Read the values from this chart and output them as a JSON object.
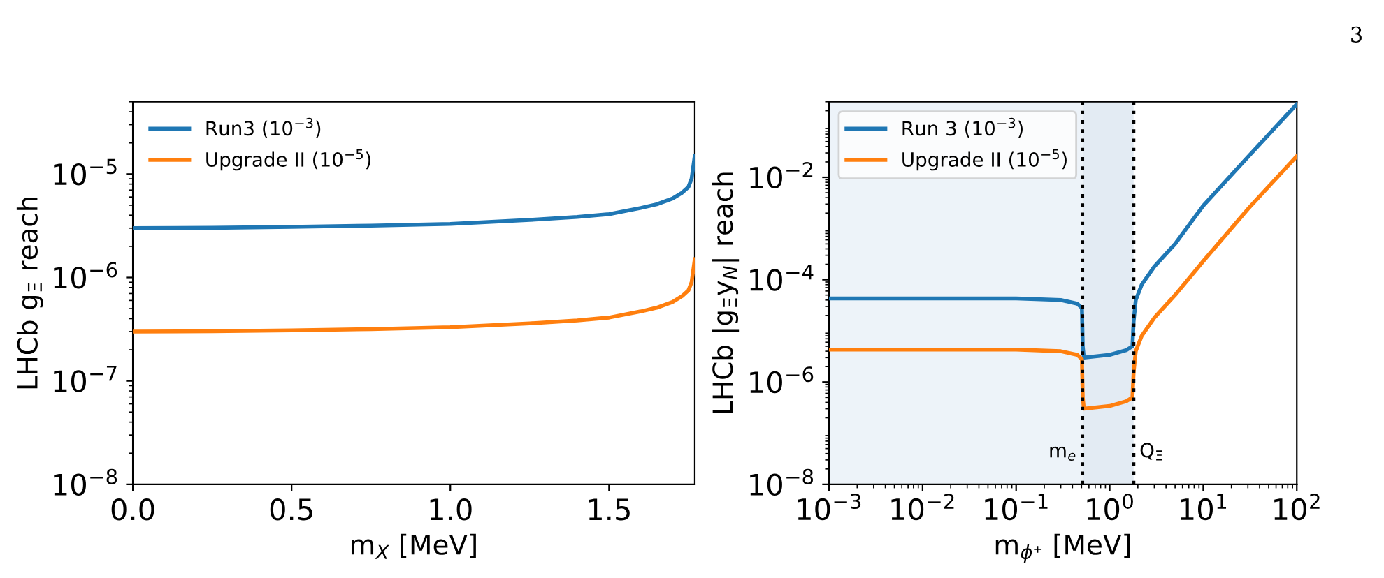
{
  "chart_data": [
    {
      "type": "line",
      "xlabel": "m$_{X}$ [MeV]",
      "ylabel": "LHCb g$_{Ξ}$ reach",
      "log": "y",
      "xlim": [
        0,
        1.77
      ],
      "ylim": [
        1e-08,
        5e-05
      ],
      "xticks": [
        {
          "value": 0,
          "label": "0.0"
        },
        0.5,
        {
          "value": 1,
          "label": "1.0"
        },
        1.5
      ],
      "yticks": [
        {
          "value": 1e-08,
          "label": "10$^{−8}$"
        },
        {
          "value": 1e-07,
          "label": "10$^{−7}$"
        },
        {
          "value": 1e-06,
          "label": "10$^{−6}$"
        },
        {
          "value": 1e-05,
          "label": "10$^{−5}$"
        }
      ],
      "x": [
        0,
        0.25,
        0.5,
        0.75,
        1.0,
        1.25,
        1.4,
        1.5,
        1.6,
        1.65,
        1.7,
        1.73,
        1.75,
        1.76,
        1.77
      ],
      "series": [
        {
          "name": "Run3 (10$^{−3}$)",
          "color": "#1f77b4",
          "values": [
            3e-06,
            3.02e-06,
            3.08e-06,
            3.17e-06,
            3.3e-06,
            3.6e-06,
            3.85e-06,
            4.1e-06,
            4.7e-06,
            5.1e-06,
            5.8e-06,
            6.6e-06,
            7.5e-06,
            9e-06,
            1.5e-05
          ]
        },
        {
          "name": "Upgrade II (10$^{−5}$)",
          "color": "#ff7f0e",
          "values": [
            3e-07,
            3.02e-07,
            3.08e-07,
            3.17e-07,
            3.3e-07,
            3.6e-07,
            3.85e-07,
            4.1e-07,
            4.7e-07,
            5.1e-07,
            5.8e-07,
            6.6e-07,
            7.5e-07,
            9e-07,
            1.5e-06
          ]
        }
      ],
      "legend": "top left",
      "grid": false,
      "annotations": [
        "3"
      ]
    },
    {
      "type": "line",
      "xlabel": "m$_{ϕ⁺}$ [MeV]",
      "ylabel": "LHCb |g$_{Ξ}$y$_{N}$| reach",
      "log": "xy",
      "xlim": [
        0.001,
        100
      ],
      "ylim": [
        1e-08,
        0.3
      ],
      "xticks": [
        {
          "value": 0.001,
          "label": "10$^{−3}$"
        },
        {
          "value": 0.01,
          "label": "10$^{−2}$"
        },
        {
          "value": 0.1,
          "label": "10$^{−1}$"
        },
        {
          "value": 1,
          "label": "10$^{0}$"
        },
        {
          "value": 10,
          "label": "10$^{1}$"
        },
        {
          "value": 100,
          "label": "10$^{2}$"
        }
      ],
      "yticks": [
        {
          "value": 1e-08,
          "label": "10$^{−8}$"
        },
        {
          "value": 1e-06,
          "label": "10$^{−6}$"
        },
        {
          "value": 0.0001,
          "label": "10$^{−4}$"
        },
        {
          "value": 0.01,
          "label": "10$^{−2}$"
        }
      ],
      "x": [
        0.001,
        0.01,
        0.1,
        0.3,
        0.45,
        0.505,
        0.515,
        0.53,
        1.0,
        1.5,
        1.75,
        1.8,
        1.9,
        2.2,
        3,
        5,
        10,
        30,
        100
      ],
      "series": [
        {
          "name": "Run 3 (10$^{−3}$)",
          "color": "#1f77b4",
          "values": [
            4.3e-05,
            4.3e-05,
            4.3e-05,
            4e-05,
            3.4e-05,
            2.8e-05,
            5e-06,
            3e-06,
            3.4e-06,
            4.2e-06,
            5e-06,
            1.5e-05,
            4e-05,
            8e-05,
            0.00018,
            0.0005,
            0.0028,
            0.025,
            0.27
          ]
        },
        {
          "name": "Upgrade II (10$^{−5}$)",
          "color": "#ff7f0e",
          "values": [
            4.3e-06,
            4.3e-06,
            4.3e-06,
            4e-06,
            3.4e-06,
            2.8e-06,
            5e-07,
            3e-07,
            3.4e-07,
            4.2e-07,
            5e-07,
            1.5e-06,
            4e-06,
            8e-06,
            1.8e-05,
            5e-05,
            0.00023,
            0.0024,
            0.026
          ]
        }
      ],
      "bands": [
        {
          "axis": "x",
          "from": 0.001,
          "to": 0.511,
          "color": "#edf3f9"
        },
        {
          "axis": "x",
          "from": 0.511,
          "to": 1.8,
          "color": "#e3ebf3"
        }
      ],
      "ref_lines": [
        {
          "axis": "x",
          "value": 0.511,
          "label": "m$_{e}$",
          "color": "#000000",
          "line_style": "dotted"
        },
        {
          "axis": "x",
          "value": 1.8,
          "label": "Q$_{Ξ}$",
          "color": "#000000",
          "line_style": "dotted"
        }
      ],
      "legend": "top left",
      "grid": false
    }
  ]
}
